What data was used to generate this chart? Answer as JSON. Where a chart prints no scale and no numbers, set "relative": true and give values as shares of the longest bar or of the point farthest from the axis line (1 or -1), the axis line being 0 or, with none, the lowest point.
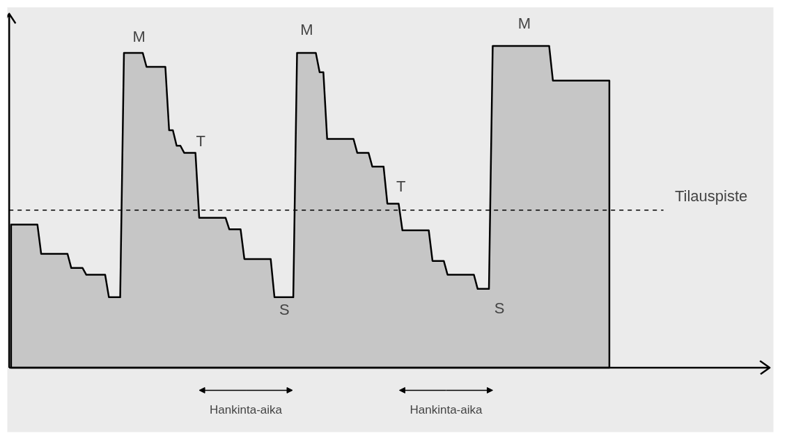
{
  "chart_data": {
    "type": "area",
    "relative": true,
    "tick_labels": false,
    "grid": false,
    "line_style": "solid",
    "categories": [
      null,
      null,
      null,
      null,
      null,
      null,
      null,
      null,
      null,
      null,
      null,
      null,
      null,
      null,
      null,
      null,
      null,
      null,
      null,
      null,
      null,
      null,
      null,
      null,
      null,
      null,
      null,
      null,
      null,
      null,
      null,
      null,
      null,
      null,
      null,
      null,
      null,
      null,
      null,
      null,
      null,
      null,
      null,
      null,
      null,
      null,
      null,
      null,
      null,
      null,
      null,
      null,
      null,
      null,
      null,
      null,
      null,
      null,
      null,
      null,
      null,
      null,
      null,
      null,
      null,
      null,
      null,
      null,
      null,
      null,
      null,
      null,
      null,
      null,
      null,
      null,
      null,
      null,
      null,
      null,
      null,
      null,
      null,
      null,
      null,
      null,
      null,
      null,
      null,
      null,
      null,
      null,
      null,
      null,
      null,
      null,
      null,
      null,
      null,
      null,
      null,
      null,
      null,
      null,
      null,
      null,
      null,
      null,
      null,
      null,
      null,
      null,
      null,
      null,
      null,
      null,
      null,
      null,
      null,
      null,
      null,
      null,
      null,
      null,
      null,
      null,
      null,
      null,
      null,
      null,
      null,
      null,
      null,
      null,
      null,
      null,
      null,
      null,
      null,
      null,
      null,
      null,
      null,
      null,
      null,
      null,
      null,
      null,
      null,
      null,
      null,
      null,
      null,
      null,
      null,
      null,
      null,
      null,
      null,
      null
    ],
    "series": [
      {
        "color": "#c6c6c6",
        "values": [
          0.445,
          0.445,
          0.445,
          0.445,
          0.445,
          0.445,
          0.445,
          0.445,
          0.354,
          0.354,
          0.354,
          0.354,
          0.354,
          0.354,
          0.354,
          0.354,
          0.31,
          0.31,
          0.31,
          0.31,
          0.289,
          0.289,
          0.289,
          0.289,
          0.289,
          0.289,
          0.219,
          0.219,
          0.219,
          0.219,
          0.978,
          0.978,
          0.978,
          0.978,
          0.978,
          0.978,
          0.935,
          0.935,
          0.935,
          0.935,
          0.935,
          0.935,
          0.738,
          0.738,
          0.69,
          0.69,
          0.668,
          0.668,
          0.668,
          0.668,
          0.466,
          0.466,
          0.466,
          0.466,
          0.466,
          0.466,
          0.466,
          0.466,
          0.43,
          0.43,
          0.43,
          0.43,
          0.338,
          0.338,
          0.338,
          0.338,
          0.338,
          0.338,
          0.338,
          0.338,
          0.219,
          0.219,
          0.219,
          0.219,
          0.219,
          0.219,
          0.978,
          0.978,
          0.978,
          0.978,
          0.978,
          0.978,
          0.918,
          0.918,
          0.711,
          0.711,
          0.711,
          0.711,
          0.711,
          0.711,
          0.711,
          0.711,
          0.668,
          0.668,
          0.668,
          0.668,
          0.625,
          0.625,
          0.625,
          0.625,
          0.51,
          0.51,
          0.51,
          0.51,
          0.427,
          0.427,
          0.427,
          0.427,
          0.427,
          0.427,
          0.427,
          0.427,
          0.332,
          0.332,
          0.332,
          0.332,
          0.289,
          0.289,
          0.289,
          0.289,
          0.289,
          0.289,
          0.289,
          0.289,
          0.245,
          0.245,
          0.245,
          0.245,
          1.0,
          1.0,
          1.0,
          1.0,
          1.0,
          1.0,
          1.0,
          1.0,
          1.0,
          1.0,
          1.0,
          1.0,
          1.0,
          1.0,
          1.0,
          1.0,
          0.892,
          0.892,
          0.892,
          0.892,
          0.892,
          0.892,
          0.892,
          0.892,
          0.892,
          0.892,
          0.892,
          0.892,
          0.892,
          0.892,
          0.892,
          0.892
        ]
      }
    ],
    "ref_lines": [
      {
        "axis": "y",
        "value": 0.49,
        "label": "Tilauspiste",
        "line_style": "dashed",
        "color": "#000000"
      }
    ],
    "annotations": [
      "M",
      "T",
      "S",
      "M",
      "T",
      "S",
      "M",
      "Hankinta-aika",
      "Hankinta-aika"
    ]
  }
}
